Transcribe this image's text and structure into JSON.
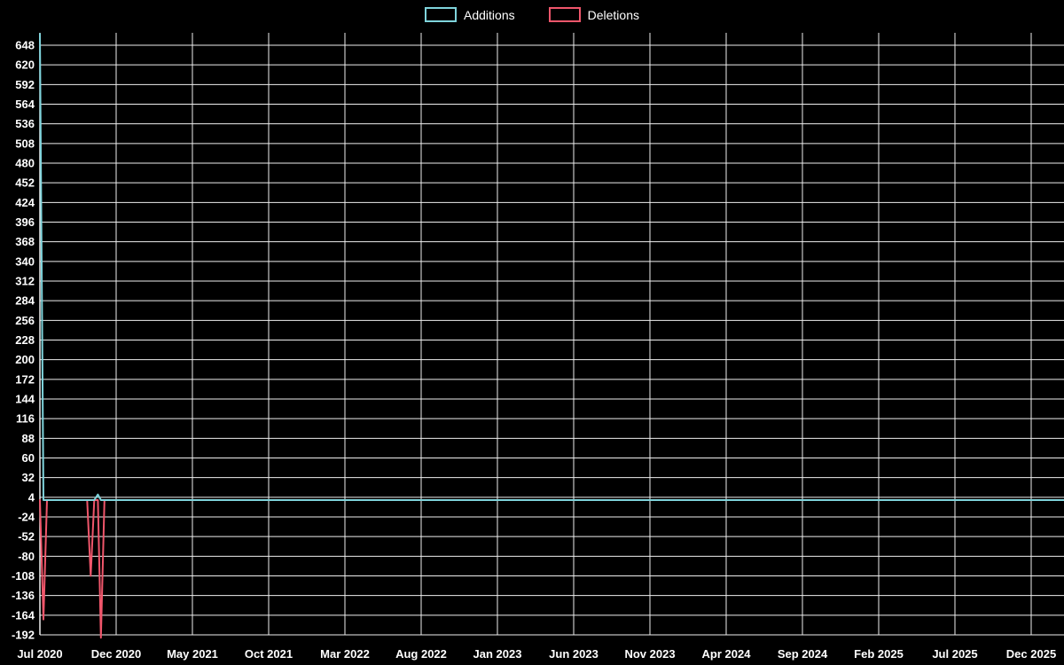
{
  "legend": {
    "additions": "Additions",
    "deletions": "Deletions"
  },
  "colors": {
    "additions": "#7fd4dc",
    "deletions": "#f0566b",
    "grid": "#eeeeee",
    "background": "#000000",
    "text": "#ffffff"
  },
  "chart_data": {
    "type": "line",
    "title": "",
    "xlabel": "",
    "ylabel": "",
    "legend_position": "top-center",
    "grid": true,
    "ylim": [
      -192,
      648
    ],
    "y_tick_step": 28,
    "y_ticks": [
      648,
      620,
      592,
      564,
      536,
      508,
      480,
      452,
      424,
      396,
      368,
      340,
      312,
      284,
      256,
      228,
      200,
      172,
      144,
      116,
      88,
      60,
      32,
      4,
      -24,
      -52,
      -80,
      -108,
      -136,
      -164,
      -192
    ],
    "x_tick_labels": [
      "Jul 2020",
      "Dec 2020",
      "May 2021",
      "Oct 2021",
      "Mar 2022",
      "Aug 2022",
      "Jan 2023",
      "Jun 2023",
      "Nov 2023",
      "Apr 2024",
      "Sep 2024",
      "Feb 2025",
      "Jul 2025",
      "Dec 2025"
    ],
    "x_domain": [
      "2020-07-01",
      "2025-12-01"
    ],
    "x_tick_interval_months": 5,
    "series": [
      {
        "name": "Deletions",
        "color": "#f0566b",
        "points": [
          {
            "date": "2020-07-01",
            "value": 0
          },
          {
            "date": "2020-07-08",
            "value": -170
          },
          {
            "date": "2020-07-15",
            "value": 0
          },
          {
            "date": "2020-10-04",
            "value": 0
          },
          {
            "date": "2020-10-11",
            "value": -108
          },
          {
            "date": "2020-10-18",
            "value": 0
          },
          {
            "date": "2020-10-25",
            "value": 0
          },
          {
            "date": "2020-11-01",
            "value": -196
          },
          {
            "date": "2020-11-08",
            "value": 0
          },
          {
            "date": "2025-12-01",
            "value": 0
          }
        ]
      },
      {
        "name": "Additions",
        "color": "#7fd4dc",
        "points": [
          {
            "date": "2020-07-01",
            "value": 664
          },
          {
            "date": "2020-07-08",
            "value": 0
          },
          {
            "date": "2020-10-18",
            "value": 0
          },
          {
            "date": "2020-10-25",
            "value": 8
          },
          {
            "date": "2020-11-01",
            "value": 0
          },
          {
            "date": "2025-12-01",
            "value": 0
          }
        ]
      }
    ]
  }
}
